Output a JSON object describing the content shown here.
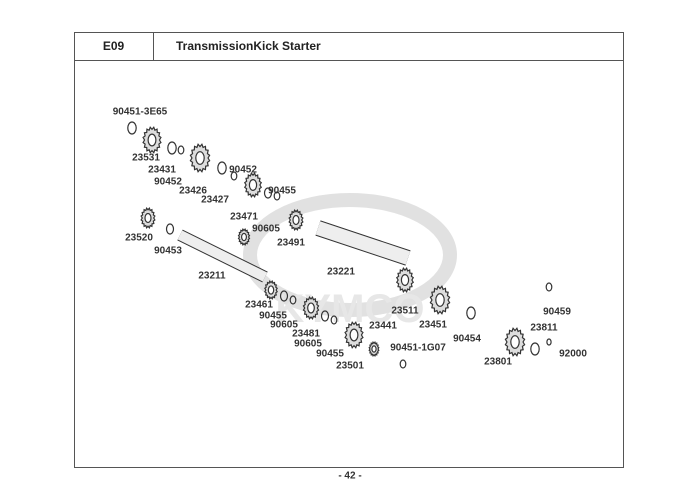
{
  "header": {
    "code": "E09",
    "title": "TransmissionKick Starter"
  },
  "watermark": "KYMCO",
  "labels": [
    "90451-3E65",
    "23531",
    "23431",
    "90452",
    "23426",
    "90452",
    "23427",
    "90455",
    "23471",
    "90605",
    "23491",
    "23520",
    "90453",
    "23211",
    "23221",
    "23461",
    "90455",
    "90605",
    "23481",
    "90605",
    "90455",
    "23441",
    "23501",
    "90451-1G07",
    "23511",
    "23451",
    "90454",
    "90459",
    "23811",
    "92000",
    "23801"
  ],
  "page_number": "- 42 -"
}
